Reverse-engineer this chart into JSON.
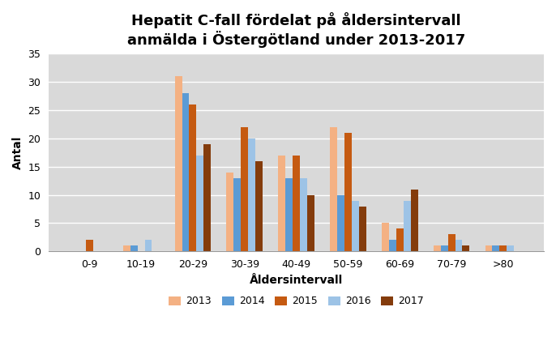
{
  "title_line1": "Hepatit C-fall fördelat på åldersintervall",
  "title_line2": "anmälda i Östergötland under 2013-2017",
  "xlabel": "Åldersintervall",
  "ylabel": "Antal",
  "categories": [
    "0-9",
    "10-19",
    "20-29",
    "30-39",
    "40-49",
    "50-59",
    "60-69",
    "70-79",
    ">80"
  ],
  "series": {
    "2013": [
      0,
      1,
      31,
      14,
      17,
      22,
      5,
      1,
      1
    ],
    "2014": [
      0,
      1,
      28,
      13,
      13,
      10,
      2,
      1,
      1
    ],
    "2015": [
      2,
      0,
      26,
      22,
      17,
      21,
      4,
      3,
      1
    ],
    "2016": [
      0,
      2,
      17,
      20,
      13,
      9,
      9,
      2,
      1
    ],
    "2017": [
      0,
      0,
      19,
      16,
      10,
      8,
      11,
      1,
      0
    ]
  },
  "series_order": [
    "2013",
    "2014",
    "2015",
    "2016",
    "2017"
  ],
  "colors": {
    "2013": "#F4B183",
    "2014": "#5B9BD5",
    "2015": "#C55A11",
    "2016": "#9DC3E6",
    "2017": "#843C0C"
  },
  "ylim": [
    0,
    35
  ],
  "yticks": [
    0,
    5,
    10,
    15,
    20,
    25,
    30,
    35
  ],
  "background_color": "#D9D9D9",
  "title_fontsize": 13,
  "axis_label_fontsize": 10,
  "tick_fontsize": 9,
  "legend_fontsize": 9,
  "bar_width": 0.14
}
